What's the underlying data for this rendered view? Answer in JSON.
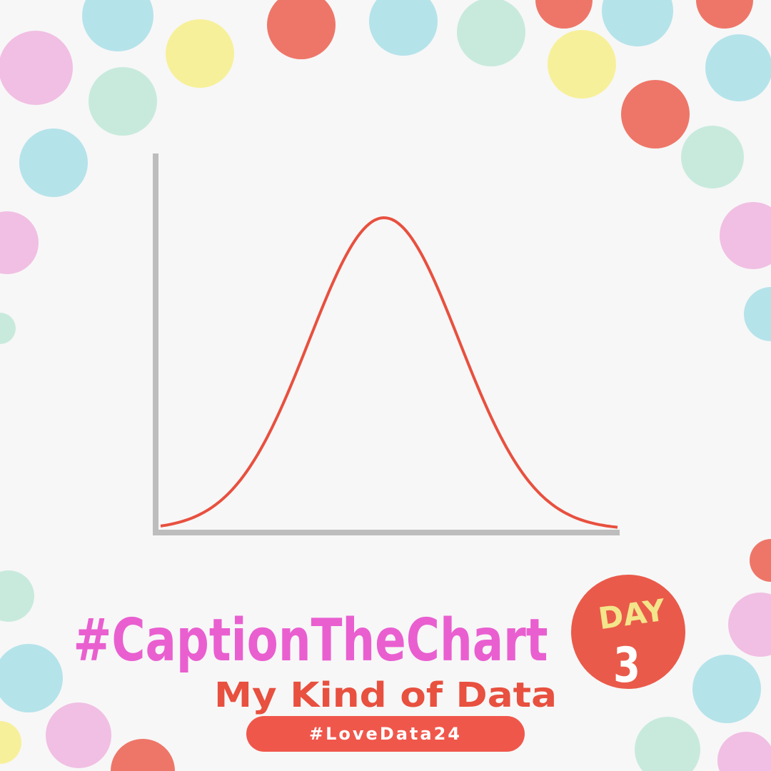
{
  "title": "#CaptionTheChart",
  "subtitle": "My Kind of Data",
  "hashtag": "#LoveData24",
  "badge": {
    "label": "DAY",
    "number": "3"
  }
}
